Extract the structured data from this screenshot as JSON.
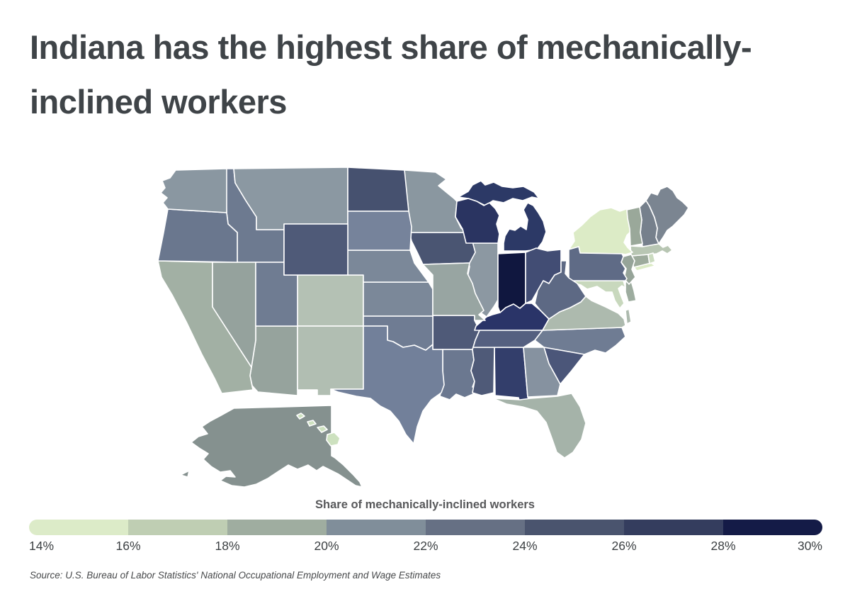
{
  "title": {
    "text": "Indiana has the highest share of mechanically-inclined workers",
    "lines": [
      "Indiana has the highest share of mechanically-",
      "inclined workers"
    ],
    "color": "#3f4448"
  },
  "legend": {
    "title": "Share of mechanically-inclined workers",
    "ticks": [
      "14%",
      "16%",
      "18%",
      "20%",
      "22%",
      "24%",
      "26%",
      "28%",
      "30%"
    ],
    "segment_colors": [
      "#dcebc8",
      "#bfceb3",
      "#9fada0",
      "#808e9a",
      "#667084",
      "#4a546e",
      "#343d5e",
      "#141b47"
    ]
  },
  "source": {
    "text": "Source: U.S. Bureau of Labor Statistics' National Occupational Employment and Wage Estimates"
  },
  "chart_data": {
    "type": "choropleth",
    "region": "United States, by state",
    "title": "Indiana has the highest share of mechanically-inclined workers",
    "legend_title": "Share of mechanically-inclined workers",
    "scale": {
      "min_pct": 14,
      "max_pct": 30,
      "bin_width_pct": 2,
      "tick_labels": [
        "14%",
        "16%",
        "18%",
        "20%",
        "22%",
        "24%",
        "26%",
        "28%",
        "30%"
      ],
      "colors": [
        "#dcebc8",
        "#bfceb3",
        "#9fada0",
        "#808e9a",
        "#667084",
        "#4a546e",
        "#343d5e",
        "#141b47"
      ]
    },
    "highest_state": "Indiana",
    "lowest_state": "New York",
    "states": [
      {
        "abbr": "AL",
        "name": "Alabama",
        "share_pct_est": 26.6,
        "color": "#333e6b"
      },
      {
        "abbr": "AK",
        "name": "Alaska",
        "share_pct_est": 20.4,
        "color": "#85918f"
      },
      {
        "abbr": "AZ",
        "name": "Arizona",
        "share_pct_est": 19.8,
        "color": "#96a39d"
      },
      {
        "abbr": "AR",
        "name": "Arkansas",
        "share_pct_est": 24.9,
        "color": "#4f5a78"
      },
      {
        "abbr": "CA",
        "name": "California",
        "share_pct_est": 19.2,
        "color": "#a2b0a4"
      },
      {
        "abbr": "CO",
        "name": "Colorado",
        "share_pct_est": 17.2,
        "color": "#b4c1b4"
      },
      {
        "abbr": "CT",
        "name": "Connecticut",
        "share_pct_est": 19.5,
        "color": "#9dab9c"
      },
      {
        "abbr": "DE",
        "name": "Delaware",
        "share_pct_est": 19.5,
        "color": "#9dac9f"
      },
      {
        "abbr": "FL",
        "name": "Florida",
        "share_pct_est": 19.0,
        "color": "#a5b3a9"
      },
      {
        "abbr": "GA",
        "name": "Georgia",
        "share_pct_est": 20.8,
        "color": "#8692a0"
      },
      {
        "abbr": "HI",
        "name": "Hawaii",
        "share_pct_est": 15.4,
        "color": "#cde1bf"
      },
      {
        "abbr": "ID",
        "name": "Idaho",
        "share_pct_est": 23.2,
        "color": "#6d7a90"
      },
      {
        "abbr": "IL",
        "name": "Illinois",
        "share_pct_est": 21.0,
        "color": "#8c98a2"
      },
      {
        "abbr": "IN",
        "name": "Indiana",
        "share_pct_est": 29.9,
        "color": "#10173f"
      },
      {
        "abbr": "IA",
        "name": "Iowa",
        "share_pct_est": 25.3,
        "color": "#4a5572"
      },
      {
        "abbr": "KS",
        "name": "Kansas",
        "share_pct_est": 22.0,
        "color": "#7b8899"
      },
      {
        "abbr": "KY",
        "name": "Kentucky",
        "share_pct_est": 27.1,
        "color": "#2a3468"
      },
      {
        "abbr": "LA",
        "name": "Louisiana",
        "share_pct_est": 23.0,
        "color": "#6b7890"
      },
      {
        "abbr": "ME",
        "name": "Maine",
        "share_pct_est": 21.6,
        "color": "#7b8591"
      },
      {
        "abbr": "MD",
        "name": "Maryland",
        "share_pct_est": 15.4,
        "color": "#c8d8bd"
      },
      {
        "abbr": "MA",
        "name": "Massachusetts",
        "share_pct_est": 17.0,
        "color": "#b8c6b3"
      },
      {
        "abbr": "MI",
        "name": "Michigan",
        "share_pct_est": 27.0,
        "color": "#2c3966"
      },
      {
        "abbr": "MN",
        "name": "Minnesota",
        "share_pct_est": 21.0,
        "color": "#8a97a0"
      },
      {
        "abbr": "MS",
        "name": "Mississippi",
        "share_pct_est": 24.9,
        "color": "#4f5a78"
      },
      {
        "abbr": "MO",
        "name": "Missouri",
        "share_pct_est": 19.9,
        "color": "#98a5a2"
      },
      {
        "abbr": "MT",
        "name": "Montana",
        "share_pct_est": 21.0,
        "color": "#8b98a2"
      },
      {
        "abbr": "NE",
        "name": "Nebraska",
        "share_pct_est": 22.0,
        "color": "#7b8899"
      },
      {
        "abbr": "NV",
        "name": "Nevada",
        "share_pct_est": 19.8,
        "color": "#95a29d"
      },
      {
        "abbr": "NH",
        "name": "New Hampshire",
        "share_pct_est": 21.8,
        "color": "#76808c"
      },
      {
        "abbr": "NJ",
        "name": "New Jersey",
        "share_pct_est": 19.5,
        "color": "#96a499"
      },
      {
        "abbr": "NM",
        "name": "New Mexico",
        "share_pct_est": 17.3,
        "color": "#b1beb2"
      },
      {
        "abbr": "NY",
        "name": "New York",
        "share_pct_est": 14.8,
        "color": "#dcebc6"
      },
      {
        "abbr": "NC",
        "name": "North Carolina",
        "share_pct_est": 22.7,
        "color": "#6f7c93"
      },
      {
        "abbr": "ND",
        "name": "North Dakota",
        "share_pct_est": 25.5,
        "color": "#46516f"
      },
      {
        "abbr": "OH",
        "name": "Ohio",
        "share_pct_est": 25.7,
        "color": "#424d74"
      },
      {
        "abbr": "OK",
        "name": "Oklahoma",
        "share_pct_est": 22.6,
        "color": "#6f7c93"
      },
      {
        "abbr": "OR",
        "name": "Oregon",
        "share_pct_est": 23.3,
        "color": "#6a778e"
      },
      {
        "abbr": "PA",
        "name": "Pennsylvania",
        "share_pct_est": 23.7,
        "color": "#5f6b86"
      },
      {
        "abbr": "RI",
        "name": "Rhode Island",
        "share_pct_est": 15.2,
        "color": "#cbdbc0"
      },
      {
        "abbr": "SC",
        "name": "South Carolina",
        "share_pct_est": 25.1,
        "color": "#4b5679"
      },
      {
        "abbr": "SD",
        "name": "South Dakota",
        "share_pct_est": 22.0,
        "color": "#76839b"
      },
      {
        "abbr": "TN",
        "name": "Tennessee",
        "share_pct_est": 24.3,
        "color": "#556080"
      },
      {
        "abbr": "TX",
        "name": "Texas",
        "share_pct_est": 22.8,
        "color": "#72809a"
      },
      {
        "abbr": "UT",
        "name": "Utah",
        "share_pct_est": 23.2,
        "color": "#6f7c92"
      },
      {
        "abbr": "VT",
        "name": "Vermont",
        "share_pct_est": 19.4,
        "color": "#9aa89a"
      },
      {
        "abbr": "VA",
        "name": "Virginia",
        "share_pct_est": 18.6,
        "color": "#adbaae"
      },
      {
        "abbr": "WA",
        "name": "Washington",
        "share_pct_est": 21.0,
        "color": "#8a97a1"
      },
      {
        "abbr": "WV",
        "name": "West Virginia",
        "share_pct_est": 23.9,
        "color": "#5d6984"
      },
      {
        "abbr": "WI",
        "name": "Wisconsin",
        "share_pct_est": 27.2,
        "color": "#2a3461"
      },
      {
        "abbr": "WY",
        "name": "Wyoming",
        "share_pct_est": 24.8,
        "color": "#4f5a78"
      }
    ]
  }
}
